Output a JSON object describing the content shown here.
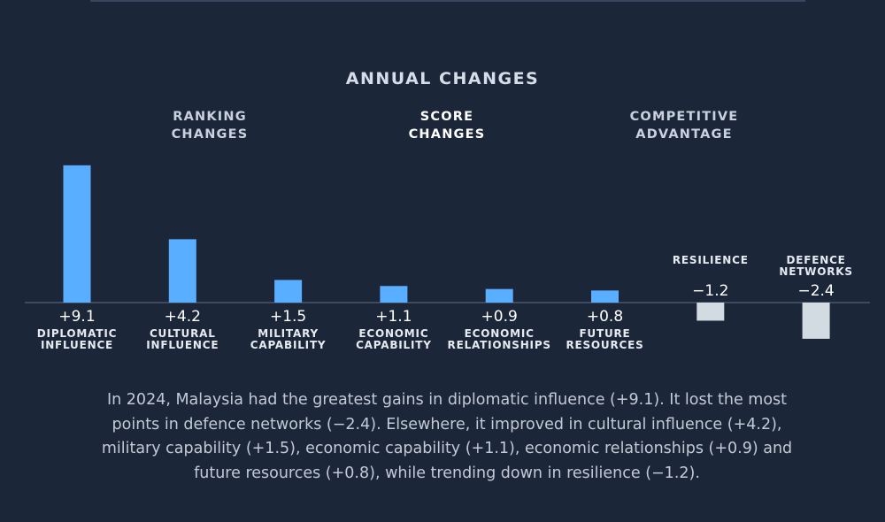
{
  "header": {
    "title": "ANNUAL CHANGES",
    "tabs": [
      {
        "line1": "RANKING",
        "line2": "CHANGES",
        "active": false
      },
      {
        "line1": "SCORE",
        "line2": "CHANGES",
        "active": true
      },
      {
        "line1": "COMPETITIVE",
        "line2": "ADVANTAGE",
        "active": false
      }
    ]
  },
  "chart_data": {
    "type": "bar",
    "categories": [
      [
        "DIPLOMATIC",
        "INFLUENCE"
      ],
      [
        "CULTURAL",
        "INFLUENCE"
      ],
      [
        "MILITARY",
        "CAPABILITY"
      ],
      [
        "ECONOMIC",
        "CAPABILITY"
      ],
      [
        "ECONOMIC",
        "RELATIONSHIPS"
      ],
      [
        "FUTURE",
        "RESOURCES"
      ],
      [
        "RESILIENCE"
      ],
      [
        "DEFENCE",
        "NETWORKS"
      ]
    ],
    "values": [
      9.1,
      4.2,
      1.5,
      1.1,
      0.9,
      0.8,
      -1.2,
      -2.4
    ],
    "value_labels": [
      "+9.1",
      "+4.2",
      "+1.5",
      "+1.1",
      "+0.9",
      "+0.8",
      "−1.2",
      "−2.4"
    ],
    "positive_color": "#5aaeff",
    "negative_color": "#d3dbe2",
    "baseline_color": "#4a5670",
    "ylim": [
      -2.4,
      9.1
    ]
  },
  "caption": "In 2024, Malaysia had the greatest gains in diplomatic influence (+9.1). It lost the most points in defence networks (−2.4). Elsewhere, it improved in cultural influence (+4.2), military capability (+1.5), economic capability (+1.1), economic relationships (+0.9) and future resources (+0.8), while trending down in resilience (−1.2)."
}
